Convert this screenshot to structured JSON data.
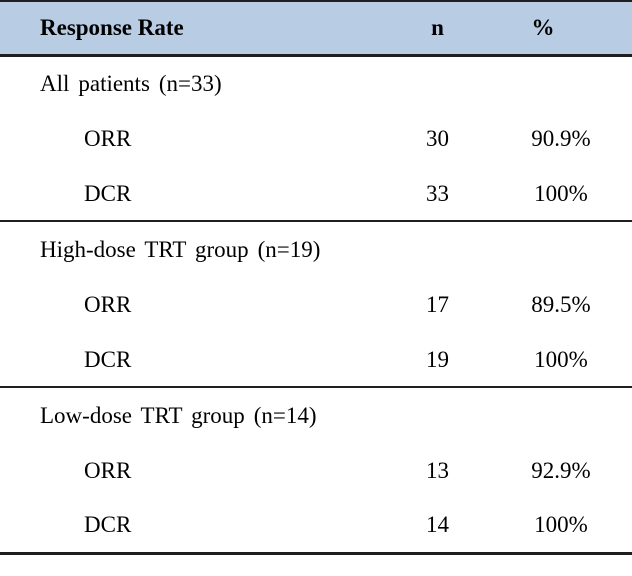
{
  "colors": {
    "header_bg": "#b8cce4",
    "border": "#1f1f1f"
  },
  "table": {
    "header": {
      "label": "Response Rate",
      "n": "n",
      "pct": "%"
    },
    "sections": [
      {
        "title": "All patients (n=33)",
        "rows": [
          {
            "label": "ORR",
            "n": "30",
            "pct": "90.9%"
          },
          {
            "label": "DCR",
            "n": "33",
            "pct": "100%"
          }
        ]
      },
      {
        "title": "High-dose TRT group (n=19)",
        "rows": [
          {
            "label": "ORR",
            "n": "17",
            "pct": "89.5%"
          },
          {
            "label": "DCR",
            "n": "19",
            "pct": "100%"
          }
        ]
      },
      {
        "title": "Low-dose TRT group (n=14)",
        "rows": [
          {
            "label": "ORR",
            "n": "13",
            "pct": "92.9%"
          },
          {
            "label": "DCR",
            "n": "14",
            "pct": "100%"
          }
        ]
      }
    ]
  }
}
